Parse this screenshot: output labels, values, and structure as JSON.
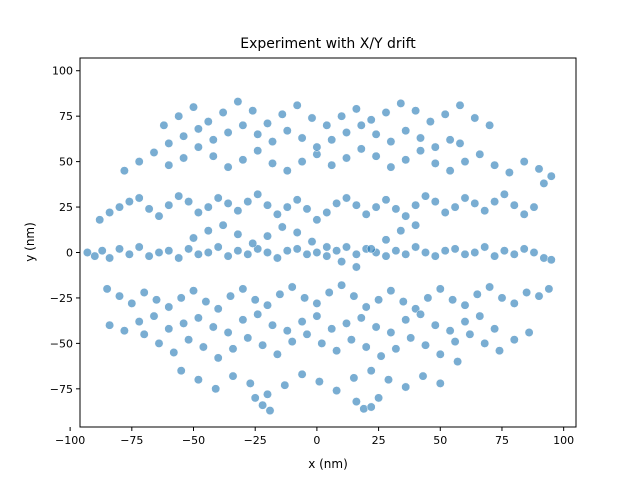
{
  "chart_data": {
    "type": "scatter",
    "title": "Experiment with X/Y drift",
    "xlabel": "x (nm)",
    "ylabel": "y (nm)",
    "xlim": [
      -96,
      105
    ],
    "ylim": [
      -96,
      107
    ],
    "xticks": [
      -100,
      -75,
      -50,
      -25,
      0,
      25,
      50,
      75,
      100
    ],
    "yticks": [
      -75,
      -50,
      -25,
      0,
      25,
      50,
      75,
      100
    ],
    "xtick_labels": [
      "−100",
      "−75",
      "−50",
      "−25",
      "0",
      "25",
      "50",
      "75",
      "100"
    ],
    "ytick_labels": [
      "−75",
      "−50",
      "−25",
      "0",
      "25",
      "50",
      "75",
      "100"
    ],
    "grid": false,
    "legend": "none",
    "point_color": "#1f77b4",
    "point_edge_color": "#ffffff",
    "point_opacity": 0.6,
    "series": [
      {
        "x": [
          -93,
          -90,
          -87,
          -84,
          -80,
          -76,
          -72,
          -68,
          -64,
          -60,
          -56,
          -52,
          -48,
          -44,
          -40,
          -36,
          -32,
          -28,
          -24,
          -20,
          -16,
          -12,
          -8,
          -4,
          0,
          4,
          8,
          12,
          16,
          20,
          24,
          28,
          32,
          36,
          40,
          44,
          48,
          52,
          56,
          60,
          64,
          68,
          72,
          76,
          80,
          84,
          88,
          92,
          95,
          -88,
          -84,
          -80,
          -76,
          -72,
          -68,
          -64,
          -60,
          -56,
          -52,
          -48,
          -44,
          -40,
          -36,
          -32,
          -28,
          -24,
          -20,
          -16,
          -12,
          -8,
          -4,
          0,
          4,
          8,
          12,
          16,
          20,
          24,
          28,
          32,
          36,
          40,
          44,
          48,
          52,
          56,
          60,
          64,
          68,
          72,
          76,
          80,
          84,
          88,
          92,
          95,
          -85,
          -80,
          -75,
          -70,
          -65,
          -60,
          -55,
          -50,
          -45,
          -40,
          -35,
          -30,
          -25,
          -20,
          -15,
          -10,
          -5,
          0,
          5,
          10,
          15,
          20,
          25,
          30,
          35,
          40,
          45,
          50,
          55,
          60,
          65,
          70,
          75,
          80,
          85,
          90,
          94,
          -78,
          -72,
          -66,
          -60,
          -54,
          -48,
          -42,
          -36,
          -30,
          -24,
          -18,
          -12,
          -6,
          0,
          6,
          12,
          18,
          24,
          30,
          36,
          42,
          48,
          54,
          60,
          66,
          72,
          78,
          84,
          90,
          -70,
          -64,
          -58,
          -52,
          -46,
          -40,
          -34,
          -28,
          -22,
          -16,
          -10,
          -4,
          2,
          8,
          14,
          20,
          26,
          32,
          38,
          44,
          50,
          56,
          62,
          68,
          74,
          80,
          86,
          -62,
          -56,
          -50,
          -44,
          -38,
          -32,
          -26,
          -20,
          -14,
          -8,
          -2,
          4,
          10,
          16,
          22,
          28,
          34,
          40,
          46,
          52,
          58,
          64,
          70,
          -55,
          -48,
          -41,
          -34,
          -27,
          -20,
          -13,
          -6,
          1,
          8,
          15,
          22,
          29,
          36,
          43,
          50,
          57,
          -84,
          -78,
          -72,
          -66,
          -60,
          -54,
          -48,
          -42,
          -36,
          -30,
          -24,
          -18,
          -12,
          -6,
          0,
          6,
          12,
          18,
          24,
          30,
          36,
          42,
          48,
          54,
          60,
          66,
          72,
          -60,
          -54,
          -48,
          -42,
          -36,
          -30,
          -24,
          -18,
          -12,
          -6,
          0,
          6,
          12,
          18,
          24,
          30,
          36,
          42,
          48,
          54,
          58,
          -50,
          -44,
          -38,
          -32,
          -26,
          -20,
          -14,
          -8,
          -2,
          4,
          10,
          16,
          22,
          28,
          34,
          40,
          -25,
          -22,
          -19,
          16,
          19,
          22,
          25
        ],
        "y": [
          0,
          -2,
          1,
          -3,
          2,
          -1,
          3,
          -2,
          0,
          1,
          -3,
          2,
          -1,
          0,
          3,
          -2,
          1,
          -1,
          2,
          0,
          -3,
          1,
          2,
          -1,
          0,
          -2,
          1,
          3,
          -1,
          2,
          0,
          -2,
          1,
          -1,
          3,
          0,
          -2,
          1,
          2,
          -1,
          0,
          3,
          -2,
          1,
          -1,
          2,
          0,
          -3,
          -4,
          18,
          22,
          25,
          28,
          30,
          24,
          20,
          26,
          31,
          28,
          22,
          25,
          30,
          27,
          23,
          28,
          32,
          26,
          21,
          25,
          29,
          24,
          18,
          22,
          27,
          30,
          26,
          21,
          25,
          29,
          24,
          20,
          26,
          31,
          28,
          22,
          25,
          30,
          27,
          23,
          28,
          32,
          26,
          21,
          25,
          38,
          42,
          -20,
          -24,
          -28,
          -22,
          -26,
          -30,
          -25,
          -21,
          -27,
          -31,
          -24,
          -20,
          -26,
          -29,
          -23,
          -19,
          -25,
          -28,
          -22,
          -18,
          -24,
          -30,
          -26,
          -21,
          -27,
          -31,
          -25,
          -20,
          -26,
          -29,
          -23,
          -19,
          -25,
          -28,
          -22,
          -24,
          -20,
          45,
          50,
          55,
          48,
          52,
          58,
          53,
          47,
          51,
          56,
          49,
          45,
          50,
          54,
          48,
          52,
          57,
          53,
          47,
          51,
          56,
          49,
          45,
          50,
          54,
          48,
          44,
          50,
          46,
          -45,
          -50,
          -55,
          -48,
          -52,
          -58,
          -53,
          -47,
          -51,
          -56,
          -49,
          -45,
          -50,
          -54,
          -48,
          -52,
          -57,
          -53,
          -47,
          -51,
          -56,
          -49,
          -45,
          -50,
          -54,
          -48,
          -44,
          70,
          75,
          80,
          72,
          77,
          83,
          78,
          71,
          76,
          81,
          74,
          70,
          75,
          79,
          73,
          77,
          82,
          78,
          72,
          76,
          81,
          74,
          70,
          -65,
          -70,
          -75,
          -68,
          -72,
          -78,
          -73,
          -67,
          -71,
          -76,
          -69,
          -65,
          -70,
          -74,
          -68,
          -72,
          -60,
          -40,
          -43,
          -38,
          -35,
          -42,
          -39,
          -36,
          -41,
          -44,
          -37,
          -34,
          -40,
          -43,
          -38,
          -35,
          -42,
          -39,
          -36,
          -41,
          -44,
          -37,
          -34,
          -40,
          -43,
          -38,
          -35,
          -42,
          60,
          64,
          68,
          62,
          66,
          70,
          65,
          61,
          67,
          63,
          58,
          62,
          66,
          70,
          65,
          61,
          67,
          63,
          58,
          62,
          60,
          8,
          12,
          15,
          10,
          5,
          9,
          14,
          11,
          6,
          3,
          -5,
          -8,
          2,
          7,
          12,
          15,
          -80,
          -84,
          -87,
          -82,
          -86,
          -85,
          -80
        ]
      }
    ]
  }
}
